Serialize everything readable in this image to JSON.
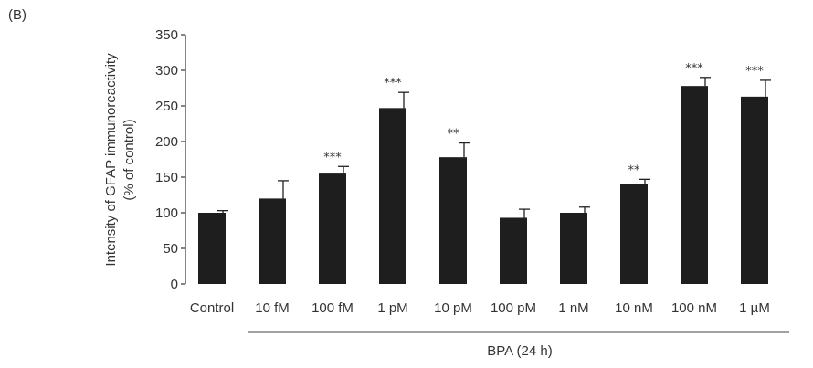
{
  "panel_label": "(B)",
  "chart_data": {
    "type": "bar",
    "ylabel_line1": "Intensity of GFAP immunoreactivity",
    "ylabel_line2": "(% of control)",
    "group_label": "BPA (24 h)",
    "ylim": [
      0,
      350
    ],
    "yticks": [
      0,
      50,
      100,
      150,
      200,
      250,
      300,
      350
    ],
    "categories": [
      "Control",
      "10 fM",
      "100 fM",
      "1 pM",
      "10 pM",
      "100 pM",
      "1 nM",
      "10 nM",
      "100 nM",
      "1 µM"
    ],
    "values": [
      100,
      120,
      155,
      247,
      178,
      93,
      100,
      140,
      278,
      263
    ],
    "errors": [
      3,
      25,
      10,
      22,
      20,
      12,
      8,
      7,
      12,
      23
    ],
    "significance": [
      "",
      "",
      "***",
      "***",
      "**",
      "",
      "",
      "**",
      "***",
      "***"
    ],
    "bar_color": "#1e1e1e"
  }
}
